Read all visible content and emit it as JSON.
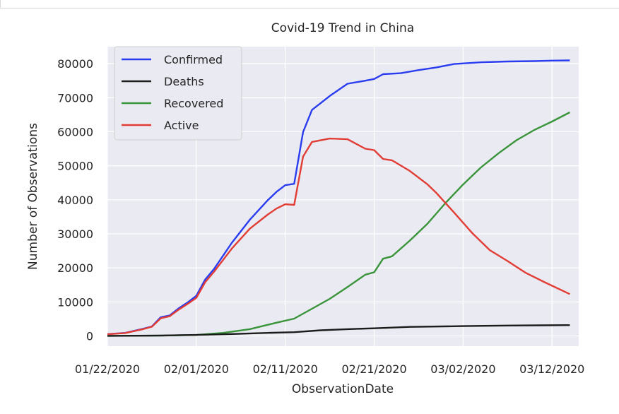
{
  "chart_data": {
    "type": "line",
    "title": "Covid-19 Trend in China",
    "xlabel": "ObservationDate",
    "ylabel": "Number of Observations",
    "ylim": [
      -3000,
      85000
    ],
    "xlim": [
      "01/22/2020",
      "03/15/2020"
    ],
    "grid": true,
    "legend_position": "top-left",
    "x_ticks": [
      "01/22/2020",
      "02/01/2020",
      "02/11/2020",
      "02/21/2020",
      "03/02/2020",
      "03/12/2020"
    ],
    "y_ticks": [
      0,
      10000,
      20000,
      30000,
      40000,
      50000,
      60000,
      70000,
      80000
    ],
    "series": [
      {
        "name": "Confirmed",
        "color": "#2a3cf0",
        "points": [
          [
            "01/22/2020",
            550
          ],
          [
            "01/24/2020",
            900
          ],
          [
            "01/26/2020",
            2100
          ],
          [
            "01/27/2020",
            2800
          ],
          [
            "01/28/2020",
            5500
          ],
          [
            "01/29/2020",
            6000
          ],
          [
            "01/30/2020",
            8100
          ],
          [
            "01/31/2020",
            9800
          ],
          [
            "02/01/2020",
            11800
          ],
          [
            "02/02/2020",
            16600
          ],
          [
            "02/03/2020",
            19700
          ],
          [
            "02/05/2020",
            27400
          ],
          [
            "02/07/2020",
            34100
          ],
          [
            "02/09/2020",
            39800
          ],
          [
            "02/10/2020",
            42300
          ],
          [
            "02/11/2020",
            44300
          ],
          [
            "02/12/2020",
            44700
          ],
          [
            "02/13/2020",
            59900
          ],
          [
            "02/14/2020",
            66400
          ],
          [
            "02/16/2020",
            70500
          ],
          [
            "02/18/2020",
            74100
          ],
          [
            "02/20/2020",
            75000
          ],
          [
            "02/21/2020",
            75500
          ],
          [
            "02/22/2020",
            76900
          ],
          [
            "02/24/2020",
            77200
          ],
          [
            "02/26/2020",
            78100
          ],
          [
            "02/28/2020",
            78900
          ],
          [
            "03/01/2020",
            79900
          ],
          [
            "03/04/2020",
            80400
          ],
          [
            "03/07/2020",
            80650
          ],
          [
            "03/10/2020",
            80750
          ],
          [
            "03/12/2020",
            80900
          ],
          [
            "03/14/2020",
            80950
          ]
        ]
      },
      {
        "name": "Deaths",
        "color": "#1c1c1c",
        "points": [
          [
            "01/22/2020",
            20
          ],
          [
            "01/28/2020",
            130
          ],
          [
            "02/01/2020",
            300
          ],
          [
            "02/05/2020",
            560
          ],
          [
            "02/09/2020",
            900
          ],
          [
            "02/12/2020",
            1110
          ],
          [
            "02/15/2020",
            1660
          ],
          [
            "02/18/2020",
            2000
          ],
          [
            "02/21/2020",
            2250
          ],
          [
            "02/25/2020",
            2660
          ],
          [
            "03/02/2020",
            2900
          ],
          [
            "03/07/2020",
            3070
          ],
          [
            "03/14/2020",
            3180
          ]
        ]
      },
      {
        "name": "Recovered",
        "color": "#39943a",
        "points": [
          [
            "01/22/2020",
            30
          ],
          [
            "01/28/2020",
            100
          ],
          [
            "02/01/2020",
            300
          ],
          [
            "02/04/2020",
            900
          ],
          [
            "02/07/2020",
            2000
          ],
          [
            "02/10/2020",
            3900
          ],
          [
            "02/12/2020",
            5100
          ],
          [
            "02/14/2020",
            8000
          ],
          [
            "02/16/2020",
            10900
          ],
          [
            "02/18/2020",
            14400
          ],
          [
            "02/20/2020",
            18000
          ],
          [
            "02/21/2020",
            18700
          ],
          [
            "02/22/2020",
            22700
          ],
          [
            "02/23/2020",
            23400
          ],
          [
            "02/25/2020",
            28000
          ],
          [
            "02/27/2020",
            33000
          ],
          [
            "02/29/2020",
            39000
          ],
          [
            "03/02/2020",
            44500
          ],
          [
            "03/04/2020",
            49500
          ],
          [
            "03/06/2020",
            53700
          ],
          [
            "03/08/2020",
            57500
          ],
          [
            "03/10/2020",
            60500
          ],
          [
            "03/12/2020",
            63000
          ],
          [
            "03/14/2020",
            65700
          ]
        ]
      },
      {
        "name": "Active",
        "color": "#e23d34",
        "points": [
          [
            "01/22/2020",
            500
          ],
          [
            "01/24/2020",
            850
          ],
          [
            "01/26/2020",
            2000
          ],
          [
            "01/27/2020",
            2700
          ],
          [
            "01/28/2020",
            5200
          ],
          [
            "01/29/2020",
            5800
          ],
          [
            "01/30/2020",
            7700
          ],
          [
            "01/31/2020",
            9400
          ],
          [
            "02/01/2020",
            11200
          ],
          [
            "02/02/2020",
            15800
          ],
          [
            "02/03/2020",
            18900
          ],
          [
            "02/05/2020",
            25700
          ],
          [
            "02/07/2020",
            31500
          ],
          [
            "02/09/2020",
            35600
          ],
          [
            "02/10/2020",
            37400
          ],
          [
            "02/11/2020",
            38700
          ],
          [
            "02/12/2020",
            38500
          ],
          [
            "02/13/2020",
            52700
          ],
          [
            "02/14/2020",
            57000
          ],
          [
            "02/16/2020",
            58000
          ],
          [
            "02/18/2020",
            57800
          ],
          [
            "02/20/2020",
            55000
          ],
          [
            "02/21/2020",
            54600
          ],
          [
            "02/22/2020",
            52000
          ],
          [
            "02/23/2020",
            51600
          ],
          [
            "02/25/2020",
            48500
          ],
          [
            "02/27/2020",
            44500
          ],
          [
            "02/28/2020",
            42000
          ],
          [
            "03/01/2020",
            36200
          ],
          [
            "03/03/2020",
            30300
          ],
          [
            "03/05/2020",
            25200
          ],
          [
            "03/07/2020",
            22000
          ],
          [
            "03/09/2020",
            18600
          ],
          [
            "03/11/2020",
            16000
          ],
          [
            "03/14/2020",
            12300
          ]
        ]
      }
    ]
  }
}
